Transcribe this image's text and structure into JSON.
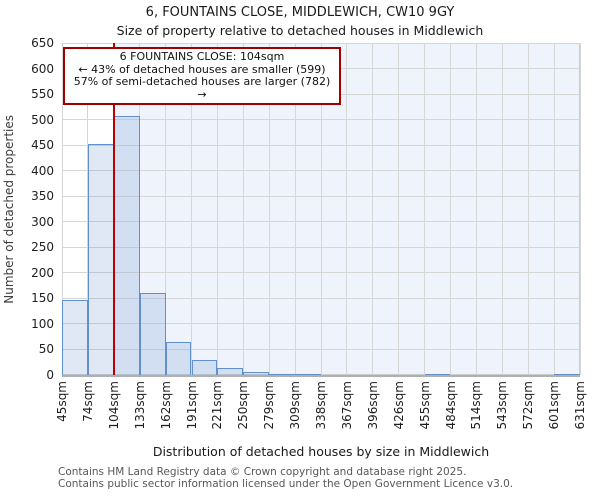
{
  "chart_data": {
    "type": "bar",
    "title": "6, FOUNTAINS CLOSE, MIDDLEWICH, CW10 9GY",
    "subtitle": "Size of property relative to detached houses in Middlewich",
    "xlabel": "Distribution of detached houses by size in Middlewich",
    "ylabel": "Number of detached properties",
    "ylim": [
      0,
      650
    ],
    "ytick_step": 50,
    "grid": true,
    "legend": false,
    "bin_edges_sqm": [
      45,
      74,
      104,
      133,
      162,
      191,
      221,
      250,
      279,
      309,
      338,
      367,
      396,
      426,
      455,
      484,
      514,
      543,
      572,
      601,
      631
    ],
    "categories": [
      "45sqm",
      "74sqm",
      "104sqm",
      "133sqm",
      "162sqm",
      "191sqm",
      "221sqm",
      "250sqm",
      "279sqm",
      "309sqm",
      "338sqm",
      "367sqm",
      "396sqm",
      "426sqm",
      "455sqm",
      "484sqm",
      "514sqm",
      "543sqm",
      "572sqm",
      "601sqm",
      "631sqm"
    ],
    "values": [
      146,
      453,
      508,
      160,
      64,
      30,
      13,
      6,
      2,
      2,
      0,
      0,
      0,
      0,
      2,
      0,
      0,
      0,
      0,
      2
    ],
    "marker": {
      "label": "104sqm",
      "value_sqm": 104,
      "tick_index": 2
    },
    "annotation": [
      "6 FOUNTAINS CLOSE: 104sqm",
      "← 43% of detached houses are smaller (599)",
      "57% of semi-detached houses are larger (782) →"
    ]
  },
  "footer": {
    "line1": "Contains HM Land Registry data © Crown copyright and database right 2025.",
    "line2": "Contains public sector information licensed under the Open Government Licence v3.0."
  },
  "colors": {
    "bar_fill": "rgba(110,150,205,0.22)",
    "bar_border": "#6191cc",
    "marker_line": "#bb0000",
    "annotation_border": "#a00000",
    "shade_fill": "#eff3fb",
    "grid": "#d6d6d6",
    "spine": "#cccccc",
    "baseline": "#b0b0b0",
    "footer_text": "#58585a"
  }
}
